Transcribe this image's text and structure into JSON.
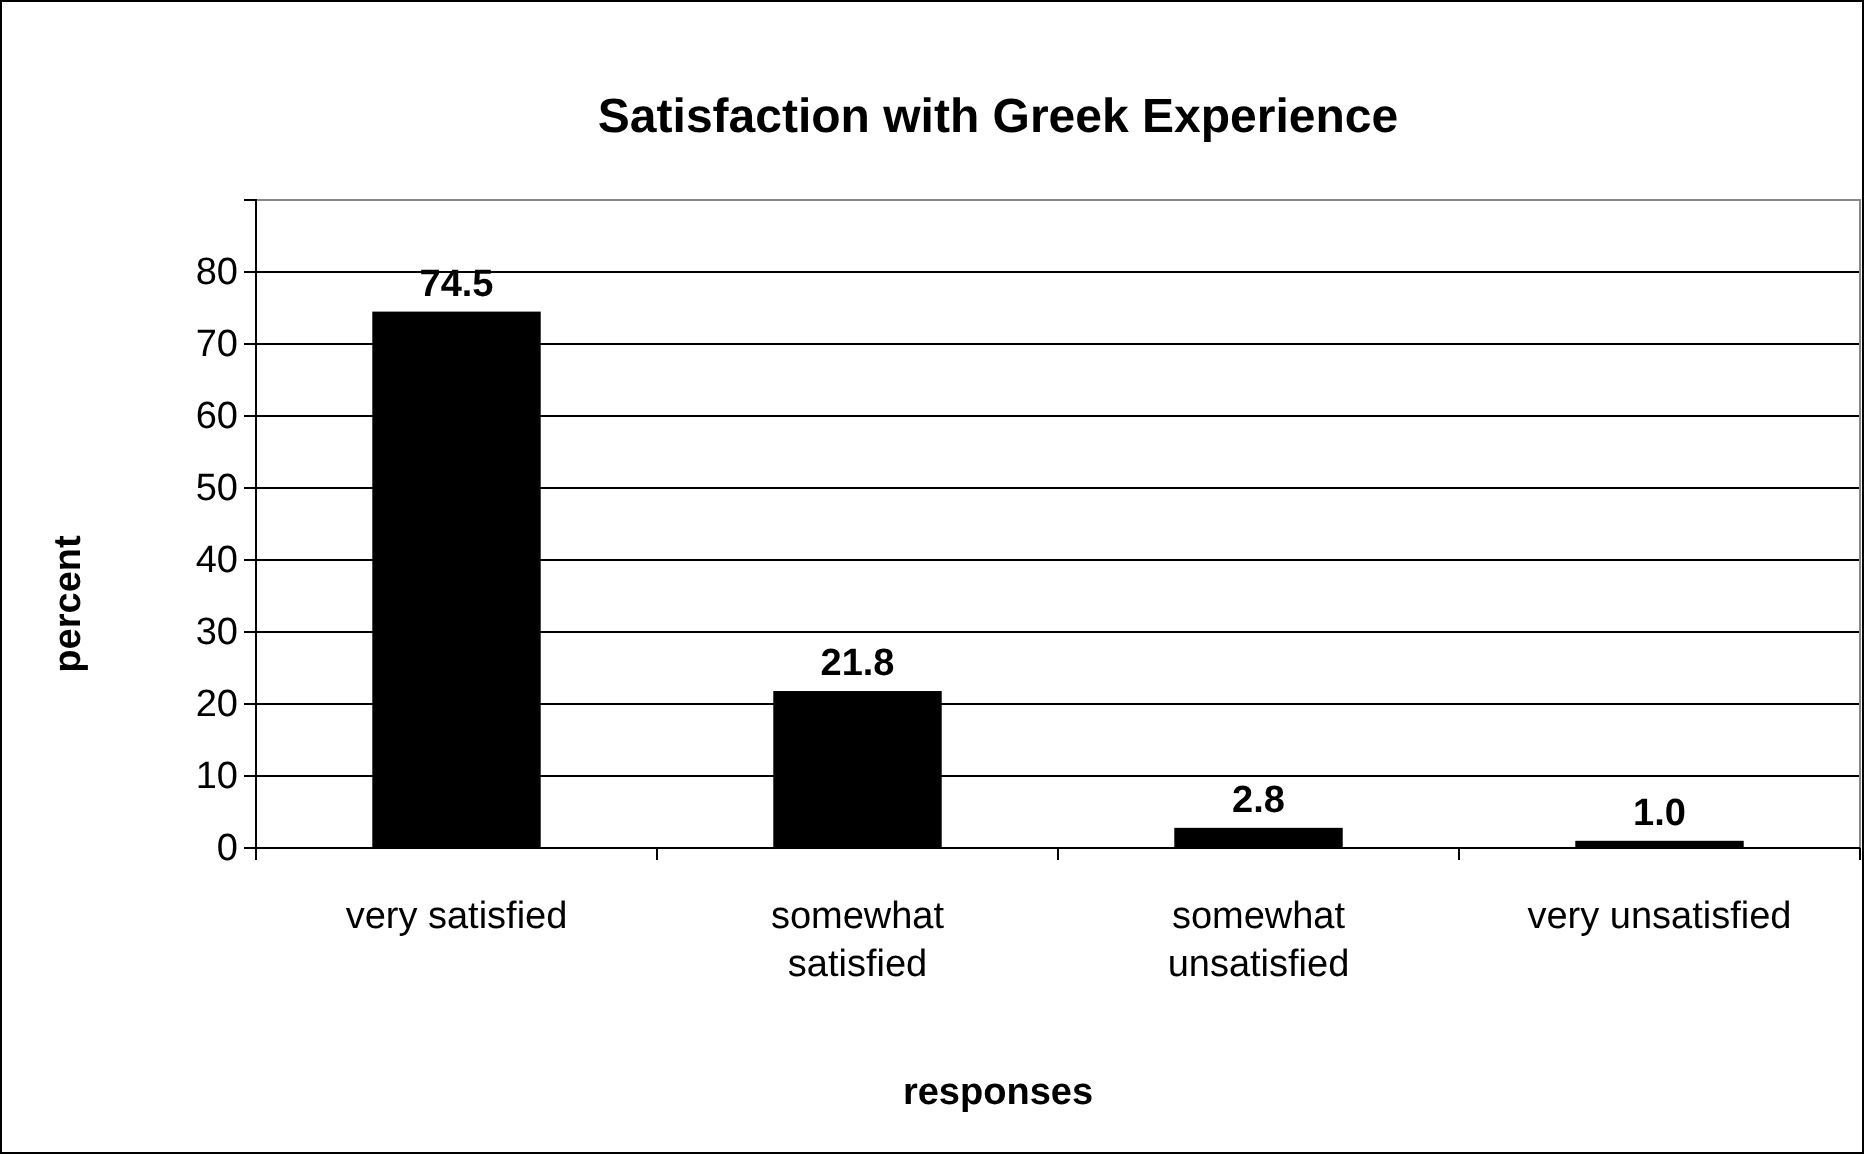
{
  "chart_data": {
    "type": "bar",
    "title": "Satisfaction with Greek Experience",
    "xlabel": "responses",
    "ylabel": "percent",
    "categories": [
      "very satisfied",
      "somewhat satisfied",
      "somewhat unsatisfied",
      "very unsatisfied"
    ],
    "values": [
      74.5,
      21.8,
      2.8,
      1.0
    ],
    "value_labels": [
      "74.5",
      "21.8",
      "2.8",
      "1.0"
    ],
    "color": "#000000",
    "ylim": [
      0,
      90
    ],
    "yticks": [
      0,
      10,
      20,
      30,
      40,
      50,
      60,
      70,
      80
    ],
    "grid": "y"
  }
}
